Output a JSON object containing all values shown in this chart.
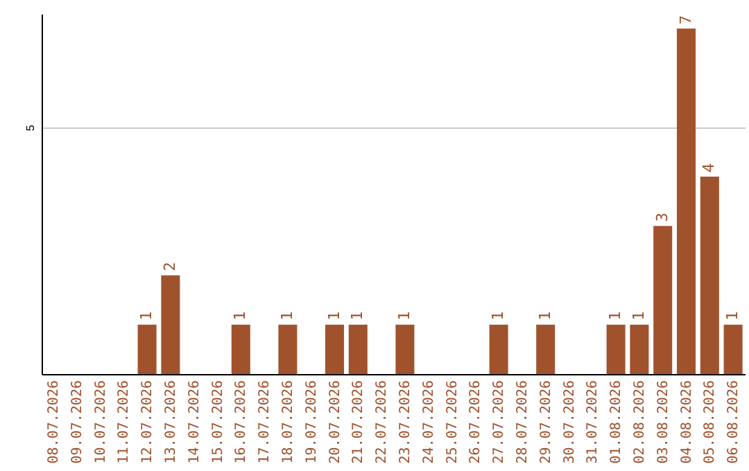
{
  "chart_data": {
    "type": "bar",
    "categories": [
      "08.07.2026",
      "09.07.2026",
      "10.07.2026",
      "11.07.2026",
      "12.07.2026",
      "13.07.2026",
      "14.07.2026",
      "15.07.2026",
      "16.07.2026",
      "17.07.2026",
      "18.07.2026",
      "19.07.2026",
      "20.07.2026",
      "21.07.2026",
      "22.07.2026",
      "23.07.2026",
      "24.07.2026",
      "25.07.2026",
      "26.07.2026",
      "27.07.2026",
      "28.07.2026",
      "29.07.2026",
      "30.07.2026",
      "31.07.2026",
      "01.08.2026",
      "02.08.2026",
      "03.08.2026",
      "04.08.2026",
      "05.08.2026",
      "06.08.2026"
    ],
    "values": [
      0,
      0,
      0,
      0,
      1,
      2,
      0,
      0,
      1,
      0,
      1,
      0,
      1,
      1,
      0,
      1,
      0,
      0,
      0,
      1,
      0,
      1,
      0,
      0,
      1,
      1,
      3,
      7,
      4,
      1
    ],
    "value_labels": [
      null,
      null,
      null,
      null,
      "1",
      "2",
      null,
      null,
      "1",
      null,
      "1",
      null,
      "1",
      "1",
      null,
      "1",
      null,
      null,
      null,
      "1",
      null,
      "1",
      null,
      null,
      "1",
      "1",
      "3",
      "7",
      "4",
      "1"
    ],
    "color": "#a0522d",
    "ylim": [
      0,
      7.3
    ],
    "yticks": [
      5
    ],
    "grid": "y"
  }
}
